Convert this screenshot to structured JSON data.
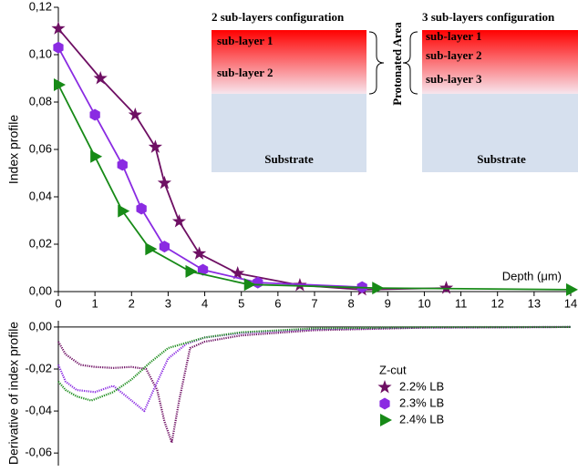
{
  "chart_data": [
    {
      "type": "line",
      "ylabel": "Index profile",
      "xlabel": "Depth (μm)",
      "xlim": [
        0,
        14
      ],
      "xticks": [
        0,
        1,
        2,
        3,
        4,
        5,
        6,
        7,
        8,
        9,
        10,
        11,
        12,
        13,
        14
      ],
      "ylim": [
        0,
        0.12
      ],
      "yticks": [
        {
          "value": 0,
          "label": "0,00"
        },
        {
          "value": 0.02,
          "label": "0,02"
        },
        {
          "value": 0.04,
          "label": "0,04"
        },
        {
          "value": 0.06,
          "label": "0,06"
        },
        {
          "value": 0.08,
          "label": "0,08"
        },
        {
          "value": 0.1,
          "label": "0,10"
        },
        {
          "value": 0.12,
          "label": "0,12"
        }
      ],
      "series": [
        {
          "color": "#6e0f63",
          "marker": "star",
          "x": [
            0,
            1.15,
            2.1,
            2.65,
            2.9,
            3.3,
            3.85,
            4.9,
            6.6,
            8.3,
            10.6
          ],
          "values": [
            0.111,
            0.09,
            0.0746,
            0.061,
            0.0458,
            0.0296,
            0.016,
            0.0077,
            0.0027,
            0.0008,
            0.0015
          ]
        },
        {
          "color": "#8a2be2",
          "marker": "hexagon",
          "x": [
            0,
            1.0,
            1.75,
            2.27,
            2.9,
            3.95,
            5.45,
            8.3
          ],
          "values": [
            0.103,
            0.0746,
            0.0535,
            0.035,
            0.019,
            0.0092,
            0.0038,
            0.0019
          ]
        },
        {
          "color": "#178a17",
          "marker": "triangle",
          "x": [
            0,
            1.0,
            1.75,
            2.5,
            3.6,
            5.2,
            8.7,
            14
          ],
          "values": [
            0.0873,
            0.057,
            0.034,
            0.018,
            0.0085,
            0.003,
            0.0015,
            0.0008
          ]
        }
      ],
      "inset": {
        "left": {
          "title": "2 sub-layers configuration",
          "layers": [
            "sub-layer  1",
            "sub-layer  2"
          ],
          "substrate": "Substrate"
        },
        "middle": "Protonated Area",
        "right": {
          "title": "3 sub-layers configuration",
          "layers": [
            "sub-layer  1",
            "sub-layer  2",
            "sub-layer  3"
          ],
          "substrate": "Substrate"
        }
      }
    },
    {
      "type": "line",
      "ylabel": "Derivative of index profile",
      "xlim": [
        0,
        14
      ],
      "ylim": [
        -0.066,
        0.003
      ],
      "yticks": [
        {
          "value": 0,
          "label": "0,00"
        },
        {
          "value": -0.02,
          "label": "-0,02"
        },
        {
          "value": -0.04,
          "label": "-0,04"
        },
        {
          "value": -0.06,
          "label": "-0,06"
        }
      ],
      "legend": {
        "title": "Z-cut",
        "position": "right"
      },
      "series": [
        {
          "name": "2.2% LB",
          "color": "#6e0f63",
          "x": [
            0,
            0.2,
            0.6,
            1,
            1.5,
            2,
            2.4,
            2.7,
            2.9,
            3.1,
            3.3,
            3.6,
            4,
            5,
            7,
            10,
            14
          ],
          "values": [
            -0.007,
            -0.013,
            -0.018,
            -0.019,
            -0.0195,
            -0.019,
            -0.02,
            -0.03,
            -0.045,
            -0.055,
            -0.035,
            -0.01,
            -0.007,
            -0.004,
            -0.0015,
            -0.0003,
            0
          ]
        },
        {
          "name": "2.3% LB",
          "color": "#8a2be2",
          "x": [
            0,
            0.2,
            0.5,
            1,
            1.5,
            2,
            2.35,
            2.6,
            3,
            3.5,
            4,
            5,
            7,
            10,
            14
          ],
          "values": [
            -0.018,
            -0.026,
            -0.03,
            -0.031,
            -0.028,
            -0.035,
            -0.04,
            -0.03,
            -0.015,
            -0.008,
            -0.005,
            -0.0028,
            -0.001,
            -0.0002,
            0
          ]
        },
        {
          "name": "2.4% LB",
          "color": "#178a17",
          "x": [
            0,
            0.2,
            0.5,
            0.9,
            1.5,
            2,
            2.5,
            3,
            4,
            5,
            7,
            10,
            14
          ],
          "values": [
            -0.026,
            -0.03,
            -0.033,
            -0.035,
            -0.031,
            -0.025,
            -0.017,
            -0.01,
            -0.005,
            -0.0025,
            -0.0007,
            -0.0001,
            0
          ]
        }
      ]
    }
  ]
}
